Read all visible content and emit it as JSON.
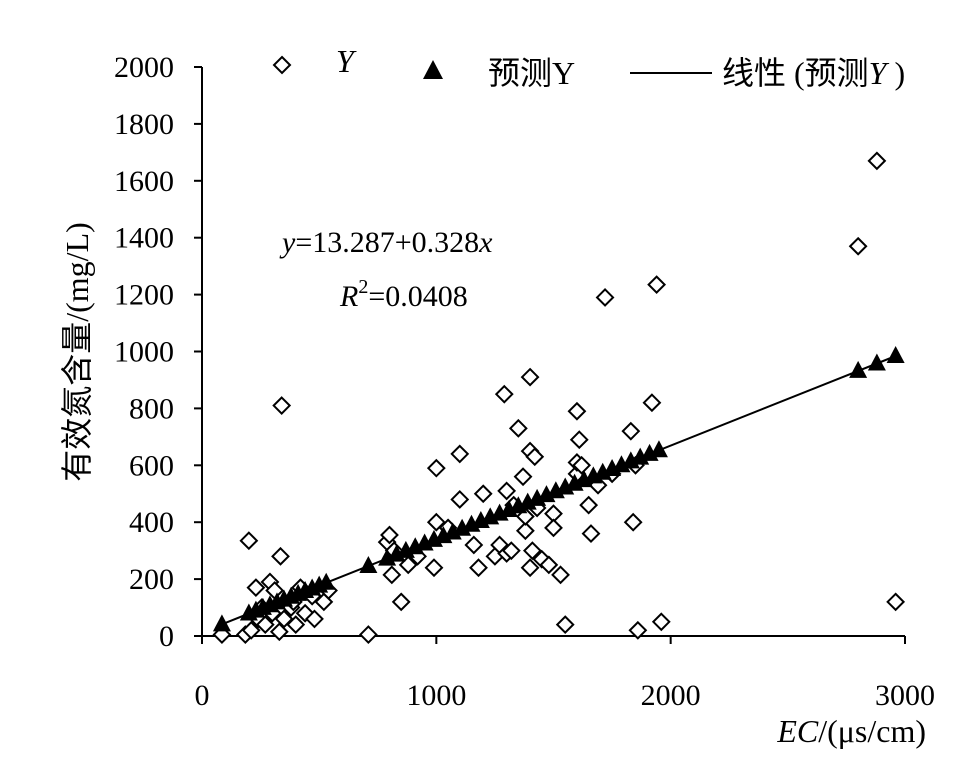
{
  "chart_data": {
    "type": "scatter",
    "title": "",
    "xlabel_italic": "EC",
    "xlabel_rest": "/(μs/cm)",
    "ylabel": "有效氮含量/(mg/L)",
    "xlim": [
      0,
      3000
    ],
    "ylim": [
      0,
      2000
    ],
    "x_ticks": [
      0,
      1000,
      2000,
      3000
    ],
    "y_ticks": [
      0,
      200,
      400,
      600,
      800,
      1000,
      1200,
      1400,
      1600,
      1800,
      2000
    ],
    "grid": false,
    "legend_position": "top",
    "legend": {
      "observed_label": "Y",
      "predicted_label": "预测Y",
      "trend_prefix": "线性 (预测",
      "trend_italic": "Y",
      "trend_suffix": " )"
    },
    "equation": {
      "y_var": "y",
      "equation_rest": "=13.287+0.328",
      "x_var": "x",
      "r2_var": "R",
      "r2_sup": "2",
      "r2_rest": "=0.0408"
    },
    "trendline": {
      "intercept": 13.287,
      "slope": 0.328
    },
    "series": [
      {
        "name": "Y",
        "marker": "diamond-open",
        "color": "#000000",
        "x": [
          85,
          200,
          185,
          210,
          230,
          240,
          255,
          270,
          290,
          300,
          310,
          330,
          340,
          335,
          350,
          380,
          390,
          400,
          420,
          440,
          470,
          480,
          520,
          540,
          710,
          790,
          800,
          810,
          820,
          850,
          880,
          920,
          990,
          1000,
          1000,
          1050,
          1100,
          1100,
          1160,
          1180,
          1200,
          1250,
          1270,
          1290,
          1300,
          1300,
          1320,
          1330,
          1350,
          1370,
          1380,
          1380,
          1400,
          1400,
          1400,
          1410,
          1420,
          1430,
          1450,
          1480,
          1500,
          1500,
          1530,
          1550,
          1600,
          1600,
          1600,
          1610,
          1620,
          1650,
          1660,
          1690,
          1720,
          1750,
          1830,
          1840,
          1850,
          1860,
          1920,
          1940,
          1960,
          2800,
          2880,
          2960
        ],
        "y": [
          5,
          335,
          5,
          20,
          170,
          60,
          100,
          40,
          190,
          80,
          160,
          15,
          810,
          280,
          60,
          100,
          120,
          40,
          170,
          80,
          140,
          60,
          120,
          160,
          5,
          330,
          355,
          215,
          300,
          120,
          250,
          280,
          240,
          400,
          590,
          380,
          640,
          480,
          320,
          240,
          500,
          280,
          320,
          850,
          290,
          510,
          300,
          460,
          730,
          560,
          370,
          420,
          910,
          650,
          240,
          300,
          630,
          450,
          270,
          250,
          430,
          380,
          215,
          40,
          570,
          610,
          790,
          690,
          600,
          460,
          360,
          530,
          1190,
          570,
          720,
          400,
          600,
          20,
          820,
          1235,
          50,
          1370,
          1670,
          120
        ]
      },
      {
        "name": "预测Y",
        "marker": "triangle-filled",
        "color": "#000000",
        "x": [
          85,
          200,
          230,
          260,
          290,
          320,
          350,
          380,
          410,
          440,
          470,
          500,
          530,
          710,
          790,
          830,
          870,
          910,
          950,
          990,
          1030,
          1070,
          1110,
          1150,
          1190,
          1230,
          1270,
          1310,
          1350,
          1390,
          1430,
          1470,
          1510,
          1550,
          1590,
          1630,
          1670,
          1710,
          1750,
          1790,
          1830,
          1870,
          1910,
          1950,
          2800,
          2880,
          2960
        ],
        "y": [
          41,
          79,
          89,
          99,
          108,
          118,
          128,
          138,
          148,
          158,
          167,
          177,
          187,
          246,
          272,
          286,
          299,
          312,
          325,
          338,
          351,
          364,
          377,
          391,
          404,
          417,
          430,
          443,
          456,
          469,
          482,
          495,
          509,
          522,
          535,
          548,
          561,
          574,
          587,
          600,
          614,
          627,
          640,
          653,
          932,
          958,
          984
        ]
      }
    ]
  }
}
